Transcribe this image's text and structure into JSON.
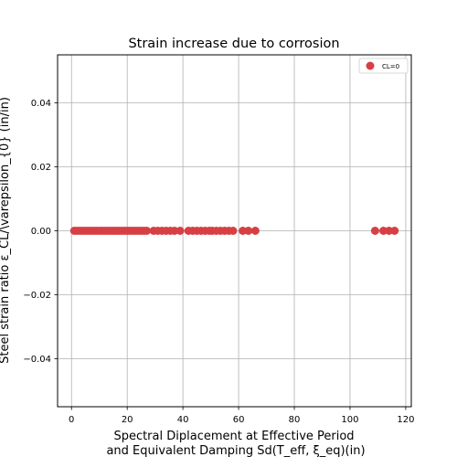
{
  "chart_data": {
    "type": "scatter",
    "title": "Strain increase due to corrosion",
    "xlabel_line1": "Spectral Diplacement at Effective Period",
    "xlabel_line2": "and Equivalent Damping Sd(T_eff, ξ_eq)(in)",
    "ylabel": "Steel strain ratio ε_CL/\\varepsilon_{0} (in/in)",
    "xlim": [
      -5,
      122
    ],
    "ylim": [
      -0.055,
      0.055
    ],
    "xticks": [
      0,
      20,
      40,
      60,
      80,
      100,
      120
    ],
    "yticks": [
      -0.04,
      -0.02,
      0.0,
      0.02,
      0.04
    ],
    "ytick_labels": [
      "−0.04",
      "−0.02",
      "0.00",
      "0.02",
      "0.04"
    ],
    "grid": true,
    "legend_position": "top-right",
    "point_color": "#d64045",
    "series": [
      {
        "name": "CL=0",
        "x": [
          1,
          2,
          3,
          4,
          5,
          6,
          7,
          8,
          9,
          10,
          11,
          12,
          13,
          14,
          15,
          16,
          17,
          18,
          19,
          20,
          21,
          22,
          23,
          24,
          25,
          26,
          27,
          29.5,
          31,
          32.5,
          34,
          35.5,
          37,
          39,
          42,
          43.5,
          45,
          46.5,
          48,
          49.5,
          50.5,
          52,
          53.5,
          55,
          56.5,
          58,
          61.5,
          63.5,
          66,
          109,
          112,
          114,
          116
        ],
        "y": [
          0,
          0,
          0,
          0,
          0,
          0,
          0,
          0,
          0,
          0,
          0,
          0,
          0,
          0,
          0,
          0,
          0,
          0,
          0,
          0,
          0,
          0,
          0,
          0,
          0,
          0,
          0,
          0,
          0,
          0,
          0,
          0,
          0,
          0,
          0,
          0,
          0,
          0,
          0,
          0,
          0,
          0,
          0,
          0,
          0,
          0,
          0,
          0,
          0,
          0,
          0,
          0,
          0
        ]
      }
    ]
  }
}
